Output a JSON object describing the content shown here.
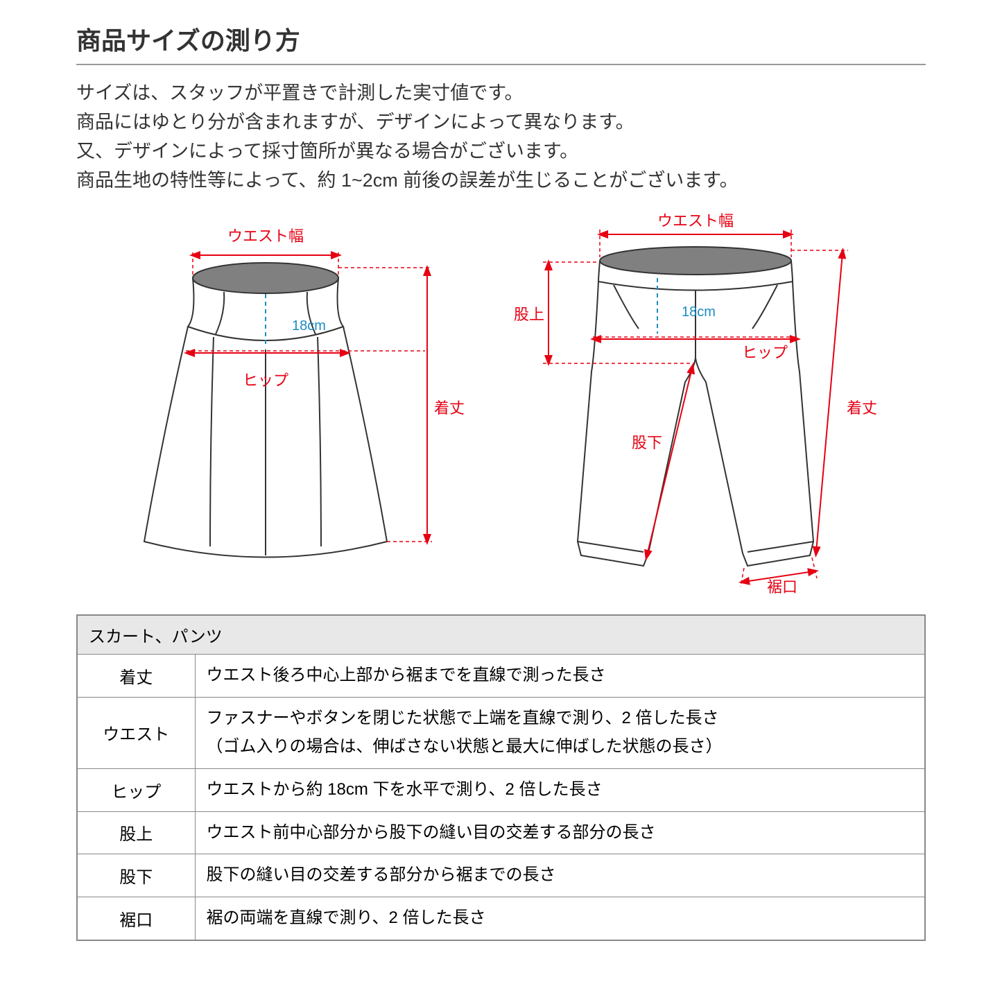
{
  "title": "商品サイズの測り方",
  "description": {
    "line1": "サイズは、スタッフが平置きで計測した実寸値です。",
    "line2": "商品にはゆとり分が含まれますが、デザインによって異なります。",
    "line3": "又、デザインによって採寸箇所が異なる場合がございます。",
    "line4": "商品生地の特性等によって、約 1~2cm 前後の誤差が生じることがございます。"
  },
  "diagram": {
    "skirt": {
      "waist_label": "ウエスト幅",
      "hip_label": "ヒップ",
      "length_label": "着丈",
      "offset_label": "18cm"
    },
    "pants": {
      "waist_label": "ウエスト幅",
      "rise_label": "股上",
      "hip_label": "ヒップ",
      "inseam_label": "股下",
      "length_label": "着丈",
      "hem_label": "裾口",
      "offset_label": "18cm"
    },
    "colors": {
      "red": "#e60012",
      "blue": "#1b8cc4",
      "outline": "#333333",
      "fill_gray": "#808080"
    }
  },
  "table": {
    "header": "スカート、パンツ",
    "rows": [
      {
        "label": "着丈",
        "desc": "ウエスト後ろ中心上部から裾までを直線で測った長さ"
      },
      {
        "label": "ウエスト",
        "desc": "ファスナーやボタンを閉じた状態で上端を直線で測り、2 倍した長さ\n（ゴム入りの場合は、伸ばさない状態と最大に伸ばした状態の長さ）"
      },
      {
        "label": "ヒップ",
        "desc": "ウエストから約 18cm 下を水平で測り、2 倍した長さ"
      },
      {
        "label": "股上",
        "desc": "ウエスト前中心部分から股下の縫い目の交差する部分の長さ"
      },
      {
        "label": "股下",
        "desc": "股下の縫い目の交差する部分から裾までの長さ"
      },
      {
        "label": "裾口",
        "desc": "裾の両端を直線で測り、2 倍した長さ"
      }
    ]
  }
}
